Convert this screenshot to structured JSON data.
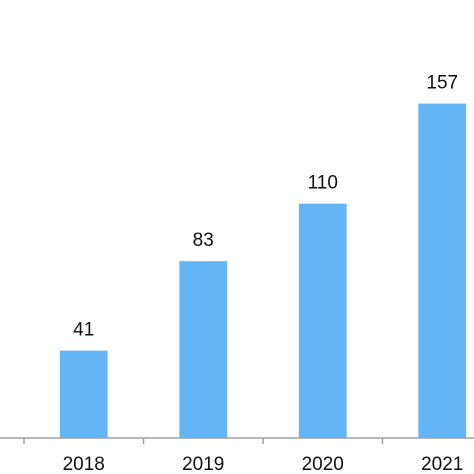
{
  "chart_data": {
    "type": "bar",
    "categories": [
      "2018",
      "2019",
      "2020",
      "2021"
    ],
    "values": [
      41,
      83,
      110,
      157
    ],
    "color": "#64b5f6",
    "ylim": [
      0,
      200
    ]
  }
}
